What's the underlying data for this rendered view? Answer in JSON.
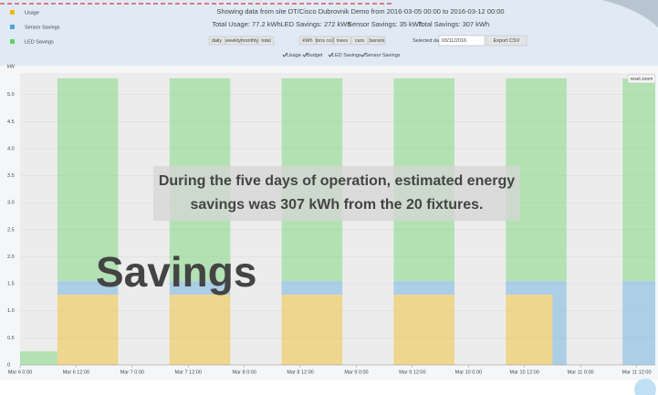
{
  "header": {
    "title": "Showing data from site DT/Cisco Dubrovnik Demo from 2016-03-05 00:00 to 2016-03-12 00:00",
    "totals": [
      "Total Usage: 77.2 kWh",
      "LED Savings: 272 kWh",
      "Sensor Savings: 35 kWh",
      "Total Savings: 307 kWh"
    ]
  },
  "period_buttons": [
    "daily",
    "weekly",
    "monthly",
    "total"
  ],
  "unit_buttons": [
    "kWh",
    "tons co2",
    "trees",
    "cars",
    "barrels"
  ],
  "date_label": "Selected date:",
  "date_value": "03/11/2016",
  "export_button": "Export CSV",
  "toggles": [
    "Usage",
    "Budget",
    "LED Savings",
    "Sensor Savings"
  ],
  "reset_zoom": "reset zoom",
  "callout": [
    "During the five days of operation, estimated energy",
    "savings was 307 kWh from the 20 fixtures."
  ],
  "slide_title": "Savings",
  "chart_data": {
    "type": "area",
    "y_label": "kW",
    "x": [
      0,
      8,
      21,
      32,
      45,
      56,
      69,
      80,
      93,
      104,
      114,
      117,
      129
    ],
    "xlim": [
      0,
      136
    ],
    "xticks": [
      {
        "value": 0,
        "label": "Mar 6 0:00"
      },
      {
        "value": 12,
        "label": "Mar 6 12:00"
      },
      {
        "value": 24,
        "label": "Mar 7 0:00"
      },
      {
        "value": 36,
        "label": "Mar 7 12:00"
      },
      {
        "value": 48,
        "label": "Mar 8 0:00"
      },
      {
        "value": 60,
        "label": "Mar 8 12:00"
      },
      {
        "value": 72,
        "label": "Mar 9 0:00"
      },
      {
        "value": 84,
        "label": "Mar 9 12:00"
      },
      {
        "value": 96,
        "label": "Mar 10 0:00"
      },
      {
        "value": 108,
        "label": "Mar 10 12:00"
      },
      {
        "value": 120,
        "label": "Mar 11 0:00"
      },
      {
        "value": 132,
        "label": "Mar 11 12:00"
      }
    ],
    "ylim": [
      0,
      5.4
    ],
    "yticks": [
      0,
      0.5,
      {
        "value": 1,
        "label": "1.0"
      },
      1.5,
      {
        "value": 2,
        "label": "2.0"
      },
      2.5,
      {
        "value": 3,
        "label": "3.0"
      },
      3.5,
      {
        "value": 4,
        "label": "4.0"
      },
      4.5,
      {
        "value": 5,
        "label": "5.0"
      }
    ],
    "series": [
      {
        "name": "Usage",
        "color": "#f2b705",
        "values": [
          0,
          1.3,
          0,
          1.3,
          0,
          1.3,
          0,
          1.3,
          0,
          1.3,
          0,
          0,
          0
        ]
      },
      {
        "name": "Sensor Savings",
        "color": "#4da3e0",
        "values": [
          0,
          0.25,
          0,
          0.25,
          0,
          0.25,
          0,
          0.25,
          0,
          0.25,
          1.55,
          0,
          1.55
        ]
      },
      {
        "name": "LED Savings",
        "color": "#5fd35f",
        "values": [
          0.25,
          3.75,
          0,
          3.75,
          0,
          3.75,
          0,
          3.75,
          0,
          3.75,
          3.75,
          0,
          3.75
        ]
      }
    ]
  }
}
